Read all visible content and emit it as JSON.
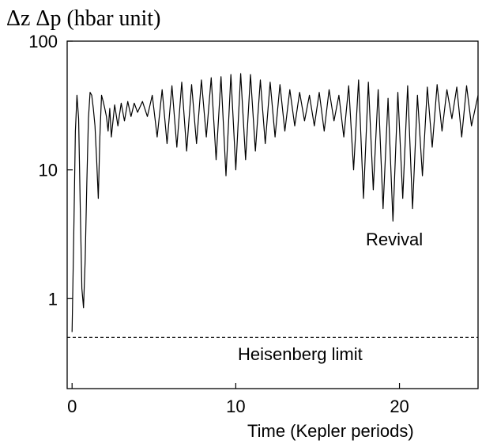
{
  "chart_data": {
    "type": "line",
    "title": "",
    "ylabel": "Δz Δp (hbar unit)",
    "xlabel": "Time (Kepler periods)",
    "xlim": [
      -0.3,
      24.8
    ],
    "ylim": [
      0.2,
      100
    ],
    "yscale": "log",
    "grid": false,
    "x_ticks": [
      0,
      10,
      20
    ],
    "x_tick_labels": [
      "0",
      "10",
      "20"
    ],
    "y_ticks": [
      1,
      10,
      100
    ],
    "y_tick_labels": [
      "1",
      "10",
      "100"
    ],
    "annotations": [
      {
        "text": "Revival",
        "x": 21.2,
        "y": 2.8
      },
      {
        "text": "Heisenberg limit",
        "x": 19.8,
        "y": 0.35
      }
    ],
    "series": [
      {
        "name": "",
        "style": "solid",
        "color": "#000000",
        "x": [
          0,
          0.1,
          0.2,
          0.3,
          0.4,
          0.5,
          0.6,
          0.7,
          0.8,
          0.9,
          1.0,
          1.1,
          1.2,
          1.3,
          1.4,
          1.5,
          1.6,
          1.7,
          1.8,
          1.9,
          2.0,
          2.1,
          2.2,
          2.3,
          2.4,
          2.6,
          2.8,
          3.0,
          3.2,
          3.4,
          3.6,
          3.8,
          4.0,
          4.3,
          4.6,
          4.9,
          5.2,
          5.5,
          5.8,
          6.1,
          6.4,
          6.7,
          7.0,
          7.3,
          7.6,
          7.9,
          8.2,
          8.5,
          8.8,
          9.1,
          9.4,
          9.7,
          10.0,
          10.3,
          10.6,
          10.9,
          11.2,
          11.5,
          11.8,
          12.1,
          12.4,
          12.7,
          13.0,
          13.3,
          13.6,
          13.9,
          14.2,
          14.5,
          14.8,
          15.1,
          15.4,
          15.7,
          16.0,
          16.3,
          16.6,
          16.9,
          17.2,
          17.5,
          17.8,
          18.1,
          18.4,
          18.7,
          19.0,
          19.3,
          19.6,
          19.9,
          20.2,
          20.5,
          20.8,
          21.1,
          21.4,
          21.7,
          22.0,
          22.3,
          22.6,
          22.9,
          23.2,
          23.5,
          23.8,
          24.1,
          24.4,
          24.8
        ],
        "values": [
          0.55,
          3,
          20,
          38,
          25,
          5,
          1.2,
          0.85,
          2,
          8,
          25,
          40,
          38,
          30,
          22,
          12,
          6,
          18,
          38,
          34,
          30,
          26,
          20,
          30,
          18,
          32,
          22,
          33,
          24,
          34,
          26,
          33,
          28,
          34,
          26,
          38,
          18,
          42,
          16,
          45,
          15,
          48,
          14,
          46,
          16,
          50,
          18,
          52,
          12,
          53,
          9,
          55,
          10,
          56,
          12,
          55,
          14,
          50,
          16,
          48,
          18,
          46,
          20,
          42,
          22,
          40,
          24,
          38,
          22,
          40,
          20,
          42,
          24,
          38,
          18,
          45,
          10,
          50,
          6,
          48,
          7,
          42,
          5,
          36,
          4,
          40,
          6,
          45,
          5,
          38,
          9,
          44,
          15,
          46,
          20,
          42,
          25,
          44,
          18,
          45,
          22,
          38
        ]
      },
      {
        "name": "",
        "style": "dashed",
        "color": "#000000",
        "x": [
          -0.3,
          24.8
        ],
        "values": [
          0.5,
          0.5
        ]
      }
    ]
  }
}
